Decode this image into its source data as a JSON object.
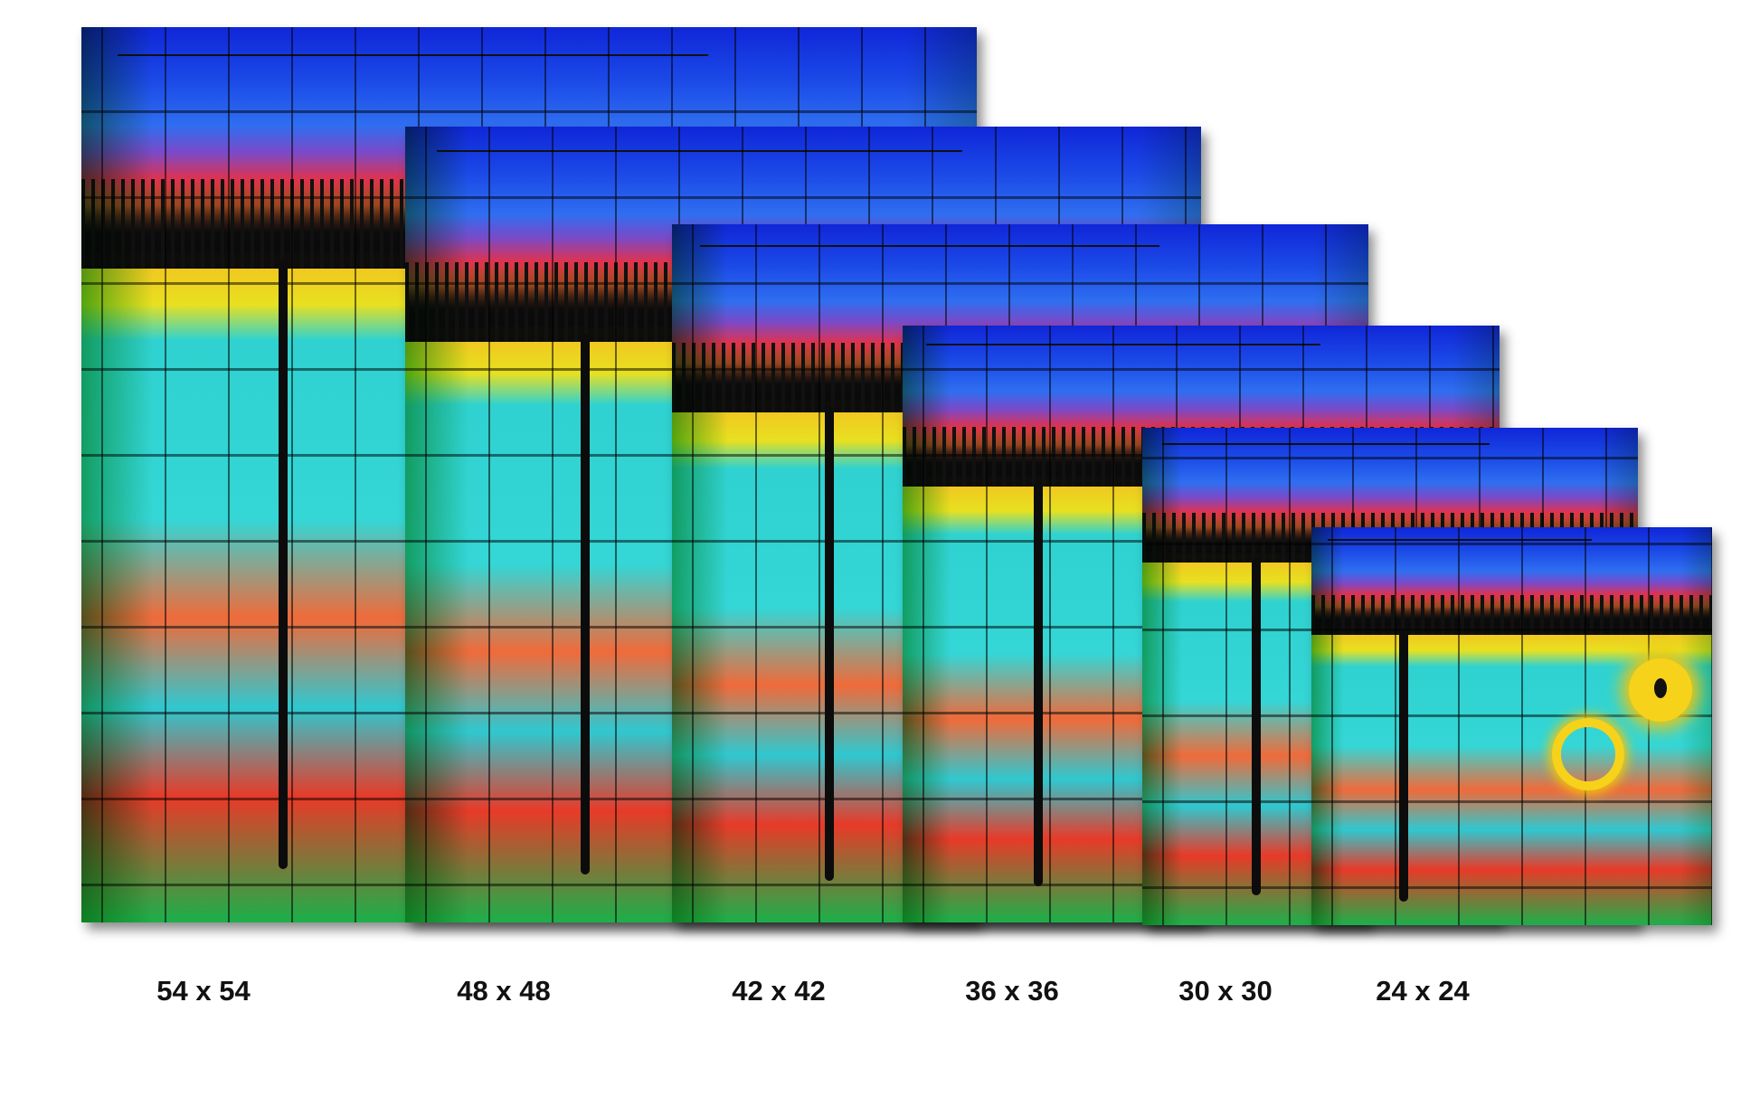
{
  "sizes": [
    {
      "label": "54 x 54"
    },
    {
      "label": "48 x 48"
    },
    {
      "label": "42 x 42"
    },
    {
      "label": "36 x 36"
    },
    {
      "label": "30 x 30"
    },
    {
      "label": "24 x 24"
    }
  ],
  "colors": {
    "background": "#ffffff",
    "label_text": "#111111",
    "sky_blue": "#1026d8",
    "cyan": "#34d6d6",
    "red_orange": "#f06a2a",
    "yellow": "#f0c820",
    "green": "#1bb04a"
  }
}
